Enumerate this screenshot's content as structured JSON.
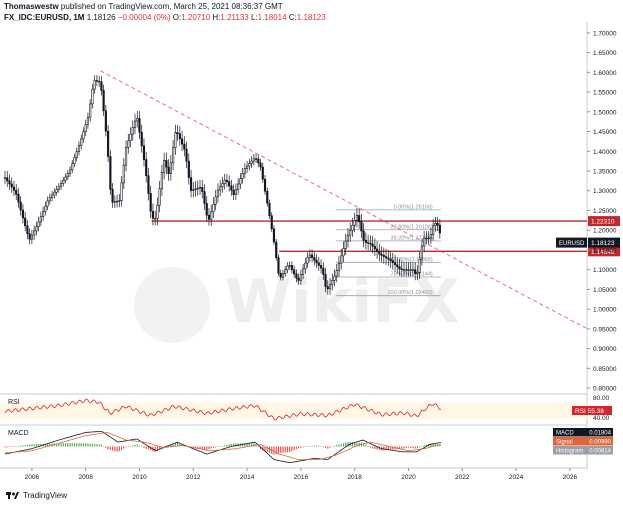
{
  "header": {
    "line1_user": "Thomaswestw",
    "line1_rest": "published on TradingView.com, March 25, 2021 08:36:37 GMT",
    "symbol": "FX_IDC:EURUSD, 1M",
    "last": "1.18126",
    "change": "−0.00004 (0%)",
    "o_label": "O:",
    "o": "1.20710",
    "h_label": "H:",
    "h": "1.21133",
    "l_label": "L:",
    "l": "1.18014",
    "c_label": "C:",
    "c": "1.18123"
  },
  "footer": {
    "brand": "TradingView"
  },
  "watermark": "WikiFX",
  "colors": {
    "bull": "#ffffff",
    "bear": "#131722",
    "resistance": "#c0282d",
    "trendline": "#e57373",
    "fib": "#9aa0a6",
    "rsi": "#d3262f",
    "macd": "#131722",
    "signal": "#e0663a",
    "hist_pos": "#4caf50",
    "hist_neg": "#ef5350"
  },
  "chart_data": {
    "type": "candlestick",
    "symbol": "EURUSD",
    "timeframe": "1M",
    "y_ticks": [
      "1.70000",
      "1.65000",
      "1.60000",
      "1.55000",
      "1.50000",
      "1.45000",
      "1.40000",
      "1.35000",
      "1.30000",
      "1.25000",
      "1.20000",
      "1.15000",
      "1.10000",
      "1.05000",
      "1.00000",
      "0.95000",
      "0.90000",
      "0.85000",
      "0.80000"
    ],
    "y_range": [
      0.79,
      1.72
    ],
    "x_ticks": [
      "2006",
      "2008",
      "2010",
      "2012",
      "2014",
      "2016",
      "2018",
      "2020",
      "2022",
      "2024",
      "2026"
    ],
    "x_range": [
      2005.0,
      2026.6
    ],
    "price_path": [
      [
        2005.0,
        1.333
      ],
      [
        2005.4,
        1.295
      ],
      [
        2005.9,
        1.175
      ],
      [
        2006.2,
        1.213
      ],
      [
        2006.6,
        1.277
      ],
      [
        2007.0,
        1.31
      ],
      [
        2007.4,
        1.35
      ],
      [
        2007.8,
        1.424
      ],
      [
        2008.1,
        1.49
      ],
      [
        2008.3,
        1.58
      ],
      [
        2008.55,
        1.575
      ],
      [
        2008.8,
        1.42
      ],
      [
        2008.95,
        1.27
      ],
      [
        2009.25,
        1.275
      ],
      [
        2009.5,
        1.41
      ],
      [
        2009.9,
        1.49
      ],
      [
        2010.2,
        1.365
      ],
      [
        2010.45,
        1.23
      ],
      [
        2010.6,
        1.23
      ],
      [
        2010.9,
        1.38
      ],
      [
        2011.1,
        1.34
      ],
      [
        2011.35,
        1.455
      ],
      [
        2011.7,
        1.4
      ],
      [
        2011.9,
        1.3
      ],
      [
        2012.3,
        1.31
      ],
      [
        2012.55,
        1.22
      ],
      [
        2012.9,
        1.3
      ],
      [
        2013.2,
        1.33
      ],
      [
        2013.5,
        1.29
      ],
      [
        2013.9,
        1.355
      ],
      [
        2014.3,
        1.385
      ],
      [
        2014.5,
        1.36
      ],
      [
        2014.8,
        1.25
      ],
      [
        2015.0,
        1.17
      ],
      [
        2015.2,
        1.075
      ],
      [
        2015.55,
        1.115
      ],
      [
        2015.9,
        1.07
      ],
      [
        2016.3,
        1.14
      ],
      [
        2016.8,
        1.1
      ],
      [
        2016.95,
        1.045
      ],
      [
        2017.3,
        1.09
      ],
      [
        2017.7,
        1.18
      ],
      [
        2018.1,
        1.24
      ],
      [
        2018.35,
        1.17
      ],
      [
        2018.6,
        1.165
      ],
      [
        2018.9,
        1.14
      ],
      [
        2019.3,
        1.125
      ],
      [
        2019.7,
        1.1
      ],
      [
        2020.2,
        1.1
      ],
      [
        2020.3,
        1.08
      ],
      [
        2020.55,
        1.18
      ],
      [
        2020.8,
        1.18
      ],
      [
        2020.95,
        1.22
      ],
      [
        2021.05,
        1.215
      ],
      [
        2021.12,
        1.21
      ],
      [
        2021.2,
        1.181
      ]
    ],
    "annotations": {
      "resistance_lines": [
        {
          "price": 1.2231,
          "label": "1.22310",
          "from_x": 2010.45
        },
        {
          "price": 1.14648,
          "label": "1.14648",
          "from_x": 2015.2
        }
      ],
      "trendline": {
        "from": [
          2008.55,
          1.604
        ],
        "to": [
          2026.6,
          0.952
        ]
      },
      "fibonacci": [
        {
          "label": "0.00%(1.25156)",
          "price": 1.25156
        },
        {
          "label": "23.60%(1.20106)",
          "price": 1.20106
        },
        {
          "label": "38.20%(1.17294)",
          "price": 1.17294
        },
        {
          "label": "61.80%(1.11865)",
          "price": 1.11865
        },
        {
          "label": "78.60%(1.08144)",
          "price": 1.08144
        },
        {
          "label": "100.00%(1.03403)",
          "price": 1.03403
        }
      ],
      "last_price": {
        "label": "EURUSD",
        "value": "1.18123",
        "price": 1.18123
      }
    },
    "rsi": {
      "name": "RSI",
      "value": "55.38",
      "ticks": [
        "80.00",
        "40.00"
      ],
      "range": [
        20,
        85
      ],
      "path": [
        [
          2005.0,
          48
        ],
        [
          2006.0,
          55
        ],
        [
          2007.0,
          62
        ],
        [
          2008.0,
          74
        ],
        [
          2008.5,
          70
        ],
        [
          2008.9,
          43
        ],
        [
          2009.5,
          60
        ],
        [
          2010.4,
          38
        ],
        [
          2011.3,
          60
        ],
        [
          2012.5,
          43
        ],
        [
          2013.5,
          55
        ],
        [
          2014.3,
          62
        ],
        [
          2015.0,
          30
        ],
        [
          2016.0,
          42
        ],
        [
          2017.0,
          38
        ],
        [
          2018.0,
          65
        ],
        [
          2019.0,
          40
        ],
        [
          2019.8,
          44
        ],
        [
          2020.3,
          37
        ],
        [
          2020.9,
          67
        ],
        [
          2021.2,
          55
        ]
      ]
    },
    "macd": {
      "name": "MACD",
      "value": "0.01804",
      "signal_name": "Signal",
      "signal_value": "0.00990",
      "hist_name": "Histogram",
      "hist_value": "0.00814",
      "range": [
        -0.09,
        0.09
      ],
      "macd_path": [
        [
          2005.0,
          -0.035
        ],
        [
          2006.0,
          -0.01
        ],
        [
          2007.0,
          0.03
        ],
        [
          2008.0,
          0.065
        ],
        [
          2008.6,
          0.07
        ],
        [
          2009.2,
          0.02
        ],
        [
          2009.9,
          0.035
        ],
        [
          2010.6,
          -0.02
        ],
        [
          2011.4,
          0.02
        ],
        [
          2012.5,
          -0.035
        ],
        [
          2013.4,
          0.0
        ],
        [
          2014.3,
          0.02
        ],
        [
          2015.0,
          -0.06
        ],
        [
          2015.6,
          -0.075
        ],
        [
          2016.5,
          -0.055
        ],
        [
          2017.0,
          -0.06
        ],
        [
          2017.8,
          0.01
        ],
        [
          2018.3,
          0.03
        ],
        [
          2019.0,
          -0.01
        ],
        [
          2019.8,
          -0.025
        ],
        [
          2020.3,
          -0.025
        ],
        [
          2020.8,
          0.01
        ],
        [
          2021.2,
          0.018
        ]
      ],
      "signal_path": [
        [
          2005.0,
          -0.03
        ],
        [
          2006.0,
          -0.02
        ],
        [
          2007.0,
          0.015
        ],
        [
          2008.0,
          0.05
        ],
        [
          2008.8,
          0.065
        ],
        [
          2009.5,
          0.03
        ],
        [
          2010.2,
          0.02
        ],
        [
          2010.9,
          -0.005
        ],
        [
          2011.6,
          0.005
        ],
        [
          2012.6,
          -0.02
        ],
        [
          2013.6,
          -0.01
        ],
        [
          2014.5,
          0.01
        ],
        [
          2015.2,
          -0.035
        ],
        [
          2015.9,
          -0.06
        ],
        [
          2016.7,
          -0.06
        ],
        [
          2017.3,
          -0.04
        ],
        [
          2018.1,
          0.005
        ],
        [
          2018.6,
          0.02
        ],
        [
          2019.3,
          0.0
        ],
        [
          2020.0,
          -0.02
        ],
        [
          2020.6,
          -0.01
        ],
        [
          2021.2,
          0.0099
        ]
      ]
    }
  }
}
